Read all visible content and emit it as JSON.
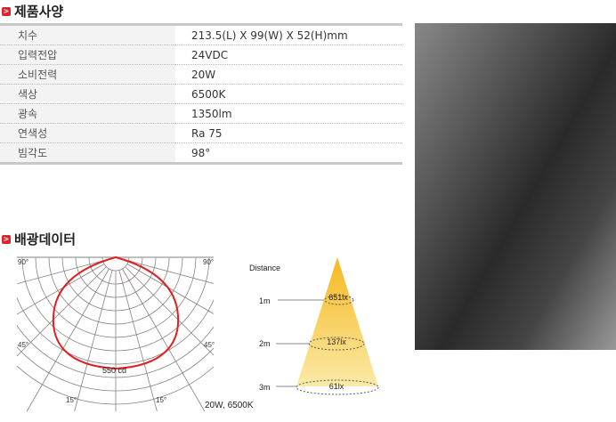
{
  "spec": {
    "title": "제품사양",
    "rows": [
      {
        "label": "치수",
        "value": "213.5(L) X 99(W) X 52(H)mm"
      },
      {
        "label": "입력전압",
        "value": "24VDC"
      },
      {
        "label": "소비전력",
        "value": "20W"
      },
      {
        "label": "색상",
        "value": "6500K"
      },
      {
        "label": "광속",
        "value": "1350lm"
      },
      {
        "label": "연색성",
        "value": "Ra 75"
      },
      {
        "label": "빔각도",
        "value": "98°"
      }
    ]
  },
  "light": {
    "title": "배광데이터",
    "polar": {
      "angle_labels": [
        "90°",
        "90°",
        "45°",
        "45°",
        "15°",
        "15°"
      ],
      "peak": "550 cd",
      "caption": "20W, 6500K"
    },
    "cone": {
      "heading": "Distance",
      "levels": [
        {
          "distance": "1m",
          "lux": "651lx"
        },
        {
          "distance": "2m",
          "lux": "137lx"
        },
        {
          "distance": "3m",
          "lux": "61lx"
        }
      ]
    }
  },
  "colors": {
    "accent": "#d9242b",
    "curve": "#e02020",
    "cone": "#f5b820"
  }
}
